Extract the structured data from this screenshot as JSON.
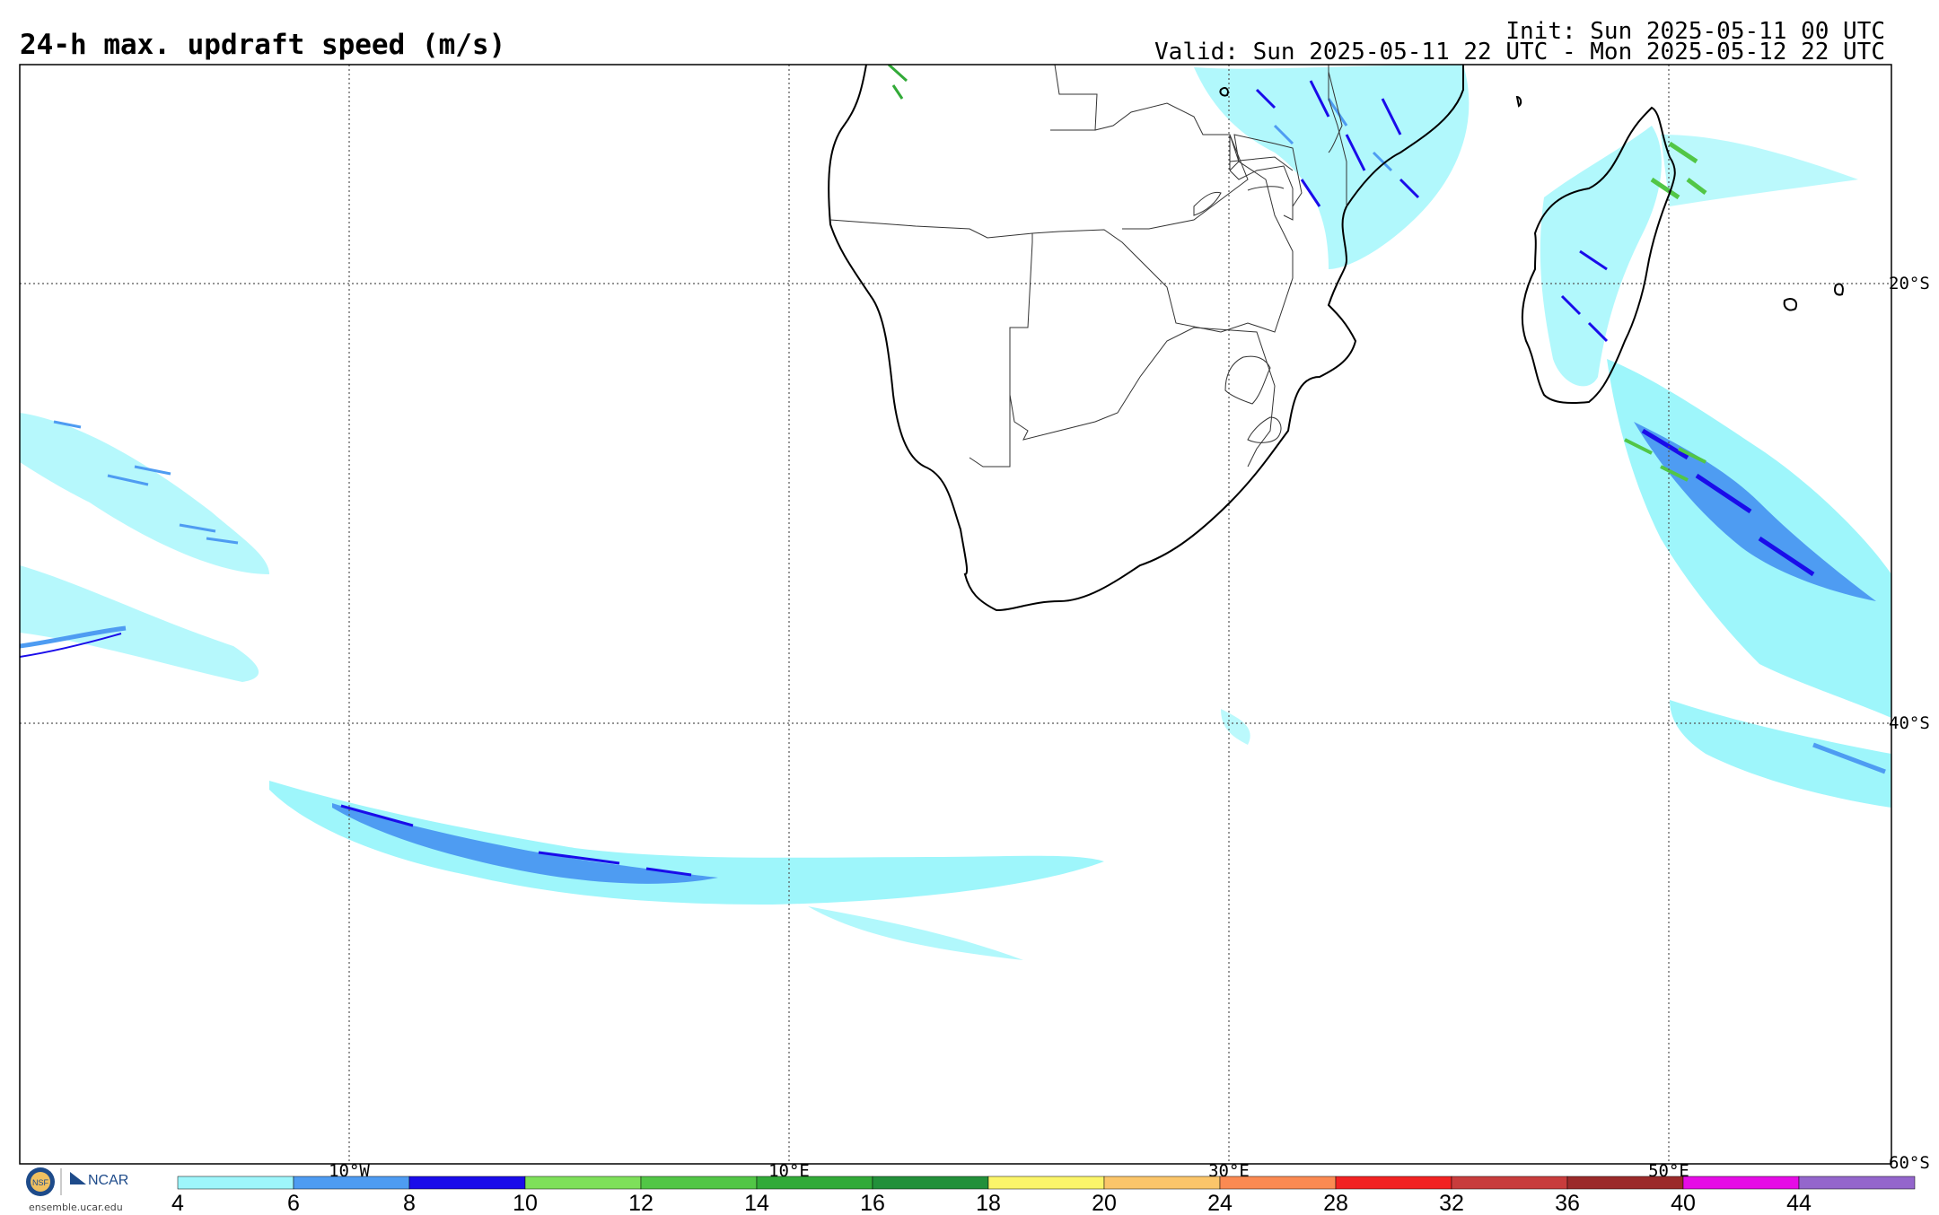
{
  "header": {
    "title": "24-h max. updraft speed (m/s)",
    "init": "Init: Sun 2025-05-11 00 UTC",
    "valid": "Valid: Sun 2025-05-11 22 UTC - Mon 2025-05-12 22 UTC"
  },
  "map": {
    "lon_labels": [
      "10°W",
      "10°E",
      "30°E",
      "50°E"
    ],
    "lat_labels": [
      "20°S",
      "40°S",
      "60°S"
    ]
  },
  "colorbar": {
    "ticks": [
      "4",
      "6",
      "8",
      "10",
      "12",
      "14",
      "16",
      "18",
      "20",
      "24",
      "28",
      "32",
      "36",
      "40",
      "44"
    ],
    "colors": [
      "#9ef6fb",
      "#4e9cf2",
      "#1a0cea",
      "#7ee05a",
      "#52c646",
      "#32aa38",
      "#22903a",
      "#fbf56a",
      "#fbc56a",
      "#fb8a52",
      "#f22222",
      "#c83c3c",
      "#9b2a2a",
      "#e60ce6",
      "#9466cc"
    ]
  },
  "footer": {
    "site": "ensemble.ucar.edu",
    "logo_nsf": "NSF",
    "logo_ncar": "NCAR"
  }
}
